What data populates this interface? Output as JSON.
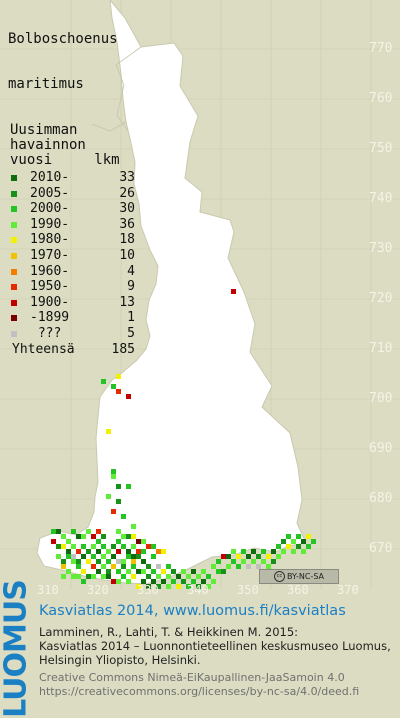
{
  "title_lines": [
    "Bolboschoenus",
    "maritimus"
  ],
  "legend": {
    "heading_lines": [
      "Uusimman",
      "havainnon",
      "vuosi     lkm"
    ],
    "items": [
      {
        "label": "2010-",
        "count": "33",
        "color": "#0e6b0e"
      },
      {
        "label": "2005-",
        "count": "26",
        "color": "#179117"
      },
      {
        "label": "2000-",
        "count": "30",
        "color": "#25c425"
      },
      {
        "label": "1990-",
        "count": "36",
        "color": "#62ec3a"
      },
      {
        "label": "1980-",
        "count": "18",
        "color": "#f2f200"
      },
      {
        "label": "1970-",
        "count": "10",
        "color": "#f2c200"
      },
      {
        "label": "1960-",
        "count": "4",
        "color": "#f27e00"
      },
      {
        "label": "1950-",
        "count": "9",
        "color": "#e62a00"
      },
      {
        "label": "1900-",
        "count": "13",
        "color": "#c00000"
      },
      {
        "label": "-1899",
        "count": "1",
        "color": "#7a0000"
      },
      {
        "label": " ???",
        "count": "5",
        "color": "#c0c0c0"
      }
    ],
    "total_label": "Yhteensä",
    "total_count": "185"
  },
  "y_axis_labels": [
    "770",
    "760",
    "750",
    "740",
    "730",
    "720",
    "710",
    "700",
    "690",
    "680",
    "670"
  ],
  "x_axis_labels": [
    "310",
    "320",
    "330",
    "340",
    "350",
    "360",
    "370"
  ],
  "license_badge": {
    "icon": "cc",
    "text": "BY-NC-SA"
  },
  "logo_text": "LUOMUS",
  "footer": {
    "line1": "Kasviatlas 2014, www.luomus.fi/kasviatlas",
    "line2": "Lamminen, R., Lahti, T. & Heikkinen M. 2015:",
    "line3": "Kasviatlas 2014 – Luonnontieteellinen keskusmuseo Luomus,",
    "line4": "Helsingin Yliopisto, Helsinki.",
    "line5": "Creative Commons Nimeä-EiKaupallinen-JaaSamoin 4.0",
    "line6": "https://creativecommons.org/licenses/by-nc-sa/4.0/deed.fi"
  },
  "map_data": {
    "grid_unit_km": 10,
    "observations": [
      {
        "x": 342,
        "y": 721,
        "period": "1900-"
      },
      {
        "x": 319,
        "y": 704,
        "period": "1980-"
      },
      {
        "x": 318,
        "y": 702,
        "period": "2000-"
      },
      {
        "x": 319,
        "y": 701,
        "period": "1950-"
      },
      {
        "x": 321,
        "y": 700,
        "period": "1900-"
      },
      {
        "x": 316,
        "y": 703,
        "period": "2000-"
      },
      {
        "x": 317,
        "y": 693,
        "period": "1980-"
      },
      {
        "x": 318,
        "y": 685,
        "period": "2000-"
      },
      {
        "x": 318,
        "y": 684,
        "period": "1990-"
      },
      {
        "x": 319,
        "y": 682,
        "period": "2005-"
      },
      {
        "x": 321,
        "y": 682,
        "period": "2000-"
      },
      {
        "x": 317,
        "y": 680,
        "period": "1990-"
      },
      {
        "x": 319,
        "y": 679,
        "period": "2005-"
      },
      {
        "x": 318,
        "y": 677,
        "period": "1950-"
      },
      {
        "x": 320,
        "y": 676,
        "period": "2000-"
      },
      {
        "x": 322,
        "y": 674,
        "period": "1990-"
      },
      {
        "x": 319,
        "y": 673,
        "period": "1990-"
      },
      {
        "x": 321,
        "y": 672,
        "period": "2005-"
      },
      {
        "x": 322,
        "y": 672,
        "period": "1980-"
      },
      {
        "x": 324,
        "y": 671,
        "period": "1990-"
      },
      {
        "x": 325,
        "y": 670,
        "period": "1950-"
      },
      {
        "x": 326,
        "y": 670,
        "period": "2000-"
      },
      {
        "x": 327,
        "y": 669,
        "period": "1960-"
      },
      {
        "x": 328,
        "y": 669,
        "period": "1980-"
      },
      {
        "x": 306,
        "y": 673,
        "period": "2000-"
      },
      {
        "x": 307,
        "y": 673,
        "period": "2010-"
      },
      {
        "x": 308,
        "y": 672,
        "period": "1990-"
      },
      {
        "x": 310,
        "y": 673,
        "period": "2000-"
      },
      {
        "x": 311,
        "y": 672,
        "period": "2010-"
      },
      {
        "x": 313,
        "y": 673,
        "period": "1990-"
      },
      {
        "x": 314,
        "y": 672,
        "period": "1900-"
      },
      {
        "x": 306,
        "y": 671,
        "period": "1900-"
      },
      {
        "x": 307,
        "y": 670,
        "period": "2005-"
      },
      {
        "x": 308,
        "y": 670,
        "period": "1980-"
      },
      {
        "x": 309,
        "y": 669,
        "period": "2010-"
      },
      {
        "x": 310,
        "y": 670,
        "period": "1990-"
      },
      {
        "x": 311,
        "y": 669,
        "period": "1950-"
      },
      {
        "x": 312,
        "y": 670,
        "period": "2000-"
      },
      {
        "x": 313,
        "y": 669,
        "period": "2005-"
      },
      {
        "x": 314,
        "y": 670,
        "period": "1990-"
      },
      {
        "x": 315,
        "y": 669,
        "period": "2010-"
      },
      {
        "x": 316,
        "y": 670,
        "period": "2000-"
      },
      {
        "x": 317,
        "y": 669,
        "period": "1990-"
      },
      {
        "x": 318,
        "y": 670,
        "period": "2005-"
      },
      {
        "x": 319,
        "y": 669,
        "period": "1900-"
      },
      {
        "x": 320,
        "y": 670,
        "period": "2000-"
      },
      {
        "x": 321,
        "y": 669,
        "period": "2010-"
      },
      {
        "x": 322,
        "y": 670,
        "period": "1990-"
      },
      {
        "x": 323,
        "y": 669,
        "period": "1950-"
      },
      {
        "x": 324,
        "y": 669,
        "period": "2000-"
      },
      {
        "x": 307,
        "y": 668,
        "period": "1990-"
      },
      {
        "x": 308,
        "y": 667,
        "period": "2005-"
      },
      {
        "x": 309,
        "y": 668,
        "period": "2000-"
      },
      {
        "x": 310,
        "y": 667,
        "period": "1990-"
      },
      {
        "x": 312,
        "y": 668,
        "period": "2010-"
      },
      {
        "x": 313,
        "y": 667,
        "period": "1980-"
      },
      {
        "x": 314,
        "y": 668,
        "period": "2000-"
      },
      {
        "x": 315,
        "y": 667,
        "period": "2005-"
      },
      {
        "x": 316,
        "y": 668,
        "period": "1990-"
      },
      {
        "x": 317,
        "y": 667,
        "period": "2000-"
      },
      {
        "x": 318,
        "y": 668,
        "period": "2010-"
      },
      {
        "x": 319,
        "y": 667,
        "period": "???"
      },
      {
        "x": 320,
        "y": 667,
        "period": "1990-"
      },
      {
        "x": 321,
        "y": 668,
        "period": "2000-"
      },
      {
        "x": 322,
        "y": 667,
        "period": "1970-"
      },
      {
        "x": 323,
        "y": 668,
        "period": "2005-"
      },
      {
        "x": 308,
        "y": 666,
        "period": "1970-"
      },
      {
        "x": 309,
        "y": 665,
        "period": "1990-"
      },
      {
        "x": 311,
        "y": 666,
        "period": "2000-"
      },
      {
        "x": 312,
        "y": 665,
        "period": "1980-"
      },
      {
        "x": 314,
        "y": 666,
        "period": "1950-"
      },
      {
        "x": 315,
        "y": 665,
        "period": "2010-"
      },
      {
        "x": 316,
        "y": 666,
        "period": "1990-"
      },
      {
        "x": 317,
        "y": 665,
        "period": "2005-"
      },
      {
        "x": 318,
        "y": 666,
        "period": "1970-"
      },
      {
        "x": 319,
        "y": 665,
        "period": "2000-"
      },
      {
        "x": 320,
        "y": 666,
        "period": "2005-"
      },
      {
        "x": 321,
        "y": 665,
        "period": "1990-"
      },
      {
        "x": 322,
        "y": 666,
        "period": "2000-"
      },
      {
        "x": 323,
        "y": 665,
        "period": "2010-"
      },
      {
        "x": 310,
        "y": 664,
        "period": "1990-"
      },
      {
        "x": 312,
        "y": 663,
        "period": "2000-"
      },
      {
        "x": 317,
        "y": 664,
        "period": "2010-"
      },
      {
        "x": 318,
        "y": 663,
        "period": "1900-"
      },
      {
        "x": 320,
        "y": 664,
        "period": "2000-"
      },
      {
        "x": 321,
        "y": 663,
        "period": "1990-"
      },
      {
        "x": 322,
        "y": 664,
        "period": "1980-"
      },
      {
        "x": 323,
        "y": 662,
        "period": "1980-"
      },
      {
        "x": 324,
        "y": 667,
        "period": "2010-"
      },
      {
        "x": 324,
        "y": 665,
        "period": "1990-"
      },
      {
        "x": 324,
        "y": 663,
        "period": "2010-"
      },
      {
        "x": 325,
        "y": 664,
        "period": "2005-"
      },
      {
        "x": 325,
        "y": 662,
        "period": "2010-"
      },
      {
        "x": 326,
        "y": 663,
        "period": "2010-"
      },
      {
        "x": 326,
        "y": 665,
        "period": "2000-"
      },
      {
        "x": 327,
        "y": 664,
        "period": "1990-"
      },
      {
        "x": 327,
        "y": 662,
        "period": "2005-"
      },
      {
        "x": 328,
        "y": 663,
        "period": "2010-"
      },
      {
        "x": 328,
        "y": 665,
        "period": "1980-"
      },
      {
        "x": 329,
        "y": 664,
        "period": "1990-"
      },
      {
        "x": 330,
        "y": 663,
        "period": "2000-"
      },
      {
        "x": 331,
        "y": 664,
        "period": "2010-"
      },
      {
        "x": 332,
        "y": 663,
        "period": "2005-"
      },
      {
        "x": 333,
        "y": 664,
        "period": "1990-"
      },
      {
        "x": 334,
        "y": 663,
        "period": "2000-"
      },
      {
        "x": 335,
        "y": 664,
        "period": "1990-"
      },
      {
        "x": 336,
        "y": 663,
        "period": "2010-"
      },
      {
        "x": 337,
        "y": 664,
        "period": "2000-"
      },
      {
        "x": 338,
        "y": 663,
        "period": "1990-"
      },
      {
        "x": 339,
        "y": 665,
        "period": "2000-"
      },
      {
        "x": 338,
        "y": 666,
        "period": "1990-"
      },
      {
        "x": 339,
        "y": 667,
        "period": "2000-"
      },
      {
        "x": 340,
        "y": 668,
        "period": "1900-"
      },
      {
        "x": 340,
        "y": 665,
        "period": "2005-"
      },
      {
        "x": 341,
        "y": 666,
        "period": "1990-"
      },
      {
        "x": 341,
        "y": 668,
        "period": "2010-"
      },
      {
        "x": 342,
        "y": 667,
        "period": "2000-"
      },
      {
        "x": 342,
        "y": 669,
        "period": "1990-"
      },
      {
        "x": 343,
        "y": 668,
        "period": "1980-"
      },
      {
        "x": 344,
        "y": 667,
        "period": "1990-"
      },
      {
        "x": 344,
        "y": 669,
        "period": "2000-"
      },
      {
        "x": 345,
        "y": 668,
        "period": "2010-"
      },
      {
        "x": 346,
        "y": 667,
        "period": "1990-"
      },
      {
        "x": 346,
        "y": 669,
        "period": "2010-"
      },
      {
        "x": 347,
        "y": 668,
        "period": "2005-"
      },
      {
        "x": 347,
        "y": 666,
        "period": "???"
      },
      {
        "x": 348,
        "y": 669,
        "period": "2000-"
      },
      {
        "x": 348,
        "y": 667,
        "period": "1990-"
      },
      {
        "x": 349,
        "y": 668,
        "period": "1980-"
      },
      {
        "x": 350,
        "y": 669,
        "period": "2010-"
      },
      {
        "x": 350,
        "y": 667,
        "period": "2005-"
      },
      {
        "x": 351,
        "y": 668,
        "period": "1990-"
      },
      {
        "x": 351,
        "y": 670,
        "period": "2000-"
      },
      {
        "x": 352,
        "y": 669,
        "period": "1990-"
      },
      {
        "x": 352,
        "y": 671,
        "period": "2005-"
      },
      {
        "x": 353,
        "y": 670,
        "period": "1980-"
      },
      {
        "x": 353,
        "y": 672,
        "period": "2000-"
      },
      {
        "x": 354,
        "y": 671,
        "period": "1990-"
      },
      {
        "x": 354,
        "y": 669,
        "period": "1990-"
      },
      {
        "x": 355,
        "y": 670,
        "period": "2005-"
      },
      {
        "x": 355,
        "y": 672,
        "period": "2000-"
      },
      {
        "x": 356,
        "y": 671,
        "period": "2010-"
      },
      {
        "x": 356,
        "y": 669,
        "period": "1990-"
      },
      {
        "x": 357,
        "y": 670,
        "period": "2000-"
      },
      {
        "x": 357,
        "y": 672,
        "period": "1980-"
      },
      {
        "x": 358,
        "y": 671,
        "period": "2000-"
      },
      {
        "x": 343,
        "y": 666,
        "period": "2000-"
      },
      {
        "x": 345,
        "y": 666,
        "period": "???"
      },
      {
        "x": 349,
        "y": 666,
        "period": "1990-"
      },
      {
        "x": 310,
        "y": 668,
        "period": "???"
      },
      {
        "x": 323,
        "y": 671,
        "period": "-1899"
      },
      {
        "x": 326,
        "y": 668,
        "period": "2000-"
      },
      {
        "x": 327,
        "y": 666,
        "period": "???"
      },
      {
        "x": 309,
        "y": 671,
        "period": "1990-"
      },
      {
        "x": 312,
        "y": 672,
        "period": "1990-"
      },
      {
        "x": 316,
        "y": 672,
        "period": "2005-"
      },
      {
        "x": 315,
        "y": 671,
        "period": "2000-"
      },
      {
        "x": 320,
        "y": 672,
        "period": "1990-"
      },
      {
        "x": 319,
        "y": 671,
        "period": "2000-"
      },
      {
        "x": 311,
        "y": 664,
        "period": "1990-"
      },
      {
        "x": 313,
        "y": 664,
        "period": "2005-"
      },
      {
        "x": 314,
        "y": 664,
        "period": "1990-"
      },
      {
        "x": 316,
        "y": 664,
        "period": "1990-"
      },
      {
        "x": 319,
        "y": 663,
        "period": "1990-"
      },
      {
        "x": 329,
        "y": 662,
        "period": "1990-"
      },
      {
        "x": 331,
        "y": 662,
        "period": "1980-"
      },
      {
        "x": 333,
        "y": 662,
        "period": "2000-"
      },
      {
        "x": 335,
        "y": 662,
        "period": "2005-"
      },
      {
        "x": 337,
        "y": 662,
        "period": "1990-"
      },
      {
        "x": 308,
        "y": 664,
        "period": "1990-"
      },
      {
        "x": 311,
        "y": 667,
        "period": "2005-"
      },
      {
        "x": 315,
        "y": 673,
        "period": "1950-"
      },
      {
        "x": 325,
        "y": 666,
        "period": "2005-"
      },
      {
        "x": 329,
        "y": 666,
        "period": "2000-"
      },
      {
        "x": 330,
        "y": 665,
        "period": "2005-"
      },
      {
        "x": 332,
        "y": 665,
        "period": "1990-"
      },
      {
        "x": 334,
        "y": 665,
        "period": "2010-"
      },
      {
        "x": 336,
        "y": 665,
        "period": "1990-"
      },
      {
        "x": 322,
        "y": 668,
        "period": "2010-"
      }
    ]
  }
}
